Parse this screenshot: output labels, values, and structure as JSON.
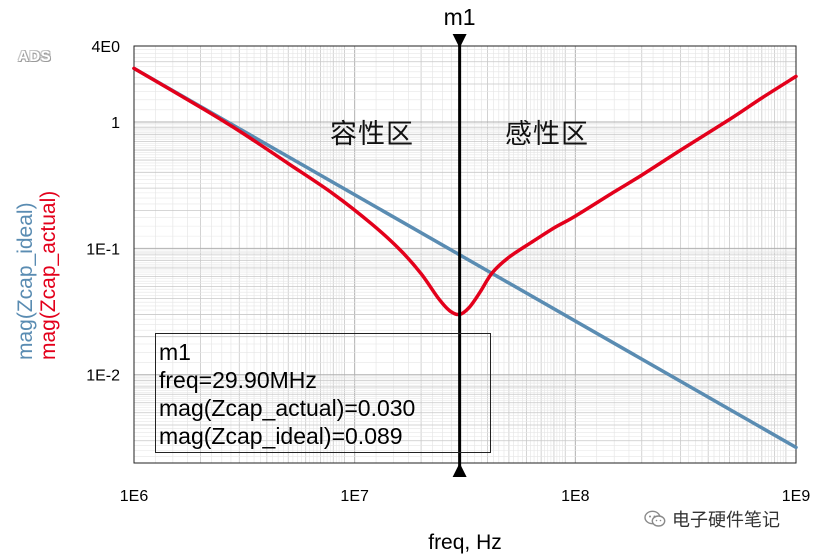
{
  "app": {
    "logo": "ADS"
  },
  "marker": {
    "name": "m1",
    "freq_line": "freq=29.90MHz",
    "actual_line": "mag(Zcap_actual)=0.030",
    "ideal_line": "mag(Zcap_ideal)=0.089",
    "freq_hz": 29900000
  },
  "annotations": {
    "capacitive_region": "容性区",
    "inductive_region": "感性区"
  },
  "watermark": {
    "text": "电子硬件笔记",
    "icon": "wechat-icon"
  },
  "colors": {
    "ideal": "#5a8cb2",
    "actual": "#e3001b",
    "grid": "#c8c8c8",
    "marker": "#000000"
  },
  "chart_data": {
    "type": "line",
    "xlabel": "freq, Hz",
    "ylabel_series": [
      "mag(Zcap_ideal)",
      "mag(Zcap_actual)"
    ],
    "x_scale": "log",
    "y_scale": "log",
    "xlim": [
      1000000,
      1000000000
    ],
    "ylim": [
      0.002,
      4
    ],
    "grid": true,
    "x_ticks": [
      {
        "value": 1000000,
        "label": "1E6"
      },
      {
        "value": 10000000,
        "label": "1E7"
      },
      {
        "value": 100000000,
        "label": "1E8"
      },
      {
        "value": 1000000000,
        "label": "1E9"
      }
    ],
    "y_ticks": [
      {
        "value": 4,
        "label": "4E0"
      },
      {
        "value": 1,
        "label": "1"
      },
      {
        "value": 0.1,
        "label": "1E-1"
      },
      {
        "value": 0.01,
        "label": "1E-2"
      }
    ],
    "series": [
      {
        "name": "mag(Zcap_ideal)",
        "color": "#5a8cb2",
        "x": [
          1000000,
          1000000000
        ],
        "y": [
          2.66,
          0.00266
        ]
      },
      {
        "name": "mag(Zcap_actual)",
        "color": "#e3001b",
        "x": [
          1000000,
          2000000,
          3000000,
          5000000,
          8000000,
          12000000,
          16000000,
          20000000,
          24000000,
          27000000,
          29900000,
          33000000,
          37000000,
          42000000,
          50000000,
          65000000,
          80000000,
          100000000,
          150000000,
          200000000,
          300000000,
          500000000,
          700000000,
          1000000000
        ],
        "y": [
          2.66,
          1.31,
          0.85,
          0.47,
          0.27,
          0.155,
          0.098,
          0.063,
          0.04,
          0.032,
          0.03,
          0.034,
          0.045,
          0.064,
          0.085,
          0.115,
          0.145,
          0.18,
          0.28,
          0.38,
          0.6,
          1.05,
          1.55,
          2.3
        ]
      }
    ]
  }
}
